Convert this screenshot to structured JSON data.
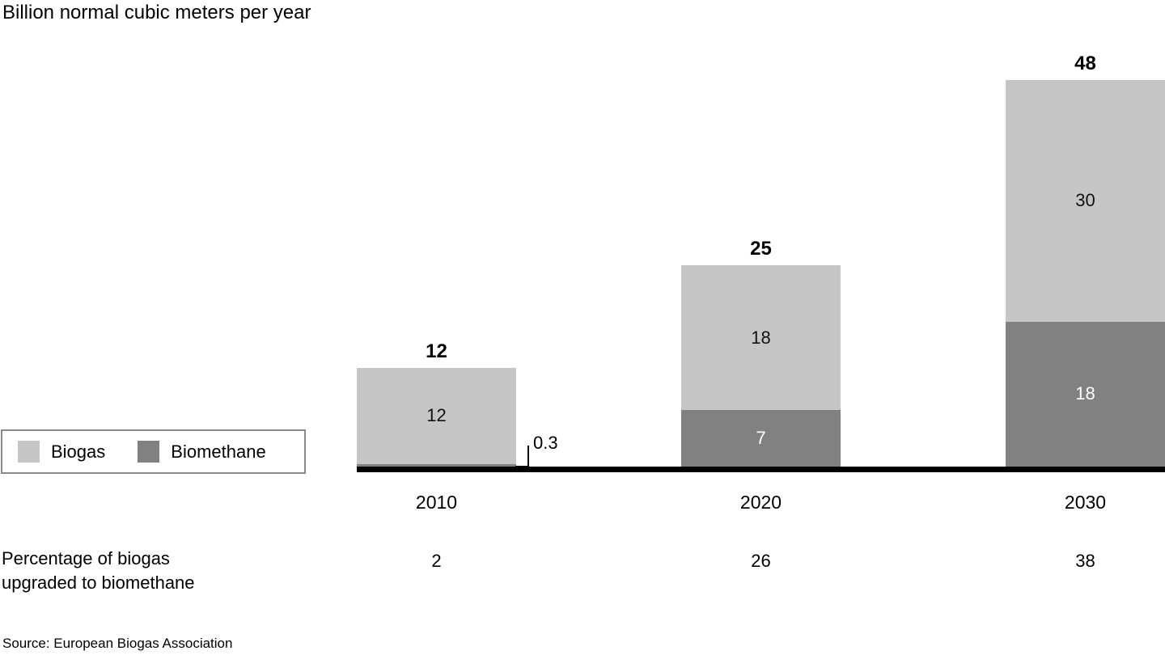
{
  "title": "Billion normal cubic meters per year",
  "legend": {
    "items": [
      {
        "label": "Biogas",
        "color": "#c6c6c6"
      },
      {
        "label": "Biomethane",
        "color": "#818181"
      }
    ]
  },
  "row_label": {
    "line1": "Percentage of biogas",
    "line2": "upgraded to biomethane"
  },
  "footer": {
    "source": "Source: European Biogas Association"
  },
  "chart_data": {
    "type": "bar",
    "stacked": true,
    "title": "Billion normal cubic meters per year",
    "categories": [
      "2010",
      "2020",
      "2030"
    ],
    "series": [
      {
        "name": "Biomethane",
        "color": "#818181",
        "label_color": "#ffffff",
        "values": [
          0.3,
          7,
          18
        ],
        "labels": [
          "",
          "7",
          "18"
        ]
      },
      {
        "name": "Biogas",
        "color": "#c6c6c6",
        "label_color": "#111111",
        "values": [
          12,
          18,
          30
        ],
        "labels": [
          "12",
          "18",
          "30"
        ]
      }
    ],
    "totals": [
      "12",
      "25",
      "48"
    ],
    "percent_upgraded": [
      "2",
      "26",
      "38"
    ],
    "annotation": {
      "text": "0.3",
      "refers_to": "Biomethane 2010"
    },
    "ylim": [
      0,
      48
    ],
    "grid": false,
    "legend_position": "left"
  }
}
